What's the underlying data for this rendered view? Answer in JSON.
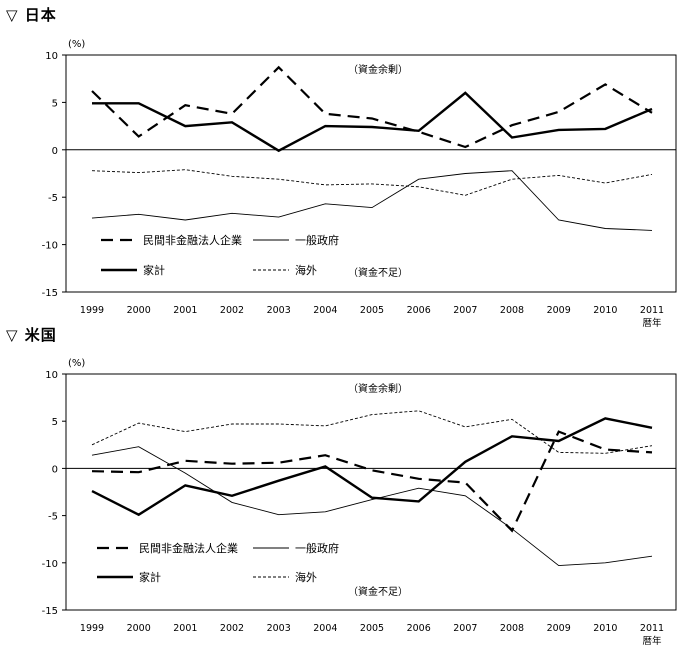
{
  "chart_data": [
    {
      "type": "line",
      "title": "▽ 日本",
      "unit": "(%)",
      "surplus_label": "（資金余剰）",
      "deficit_label": "（資金不足）",
      "x": [
        1999,
        2000,
        2001,
        2002,
        2003,
        2004,
        2005,
        2006,
        2007,
        2008,
        2009,
        2010,
        2011
      ],
      "x_tick_labels": [
        "1999",
        "2000",
        "2001",
        "2002",
        "2003",
        "2004",
        "2005",
        "2006",
        "2007",
        "2008",
        "2009",
        "2010",
        "2011"
      ],
      "x_suffix": "暦年",
      "ylim": [
        -15,
        10
      ],
      "yticks": [
        10,
        5,
        0,
        -5,
        -10,
        -15
      ],
      "series": [
        {
          "name": "民間非金融法人企業",
          "style": "dashed-thick",
          "values": [
            6.2,
            1.4,
            4.7,
            3.8,
            8.7,
            3.8,
            3.3,
            1.9,
            0.3,
            2.6,
            4.0,
            6.9,
            3.9
          ]
        },
        {
          "name": "一般政府",
          "style": "solid-thin",
          "values": [
            -7.2,
            -6.8,
            -7.4,
            -6.7,
            -7.1,
            -5.7,
            -6.1,
            -3.1,
            -2.5,
            -2.2,
            -7.4,
            -8.3,
            -8.5
          ]
        },
        {
          "name": "家計",
          "style": "solid-thick",
          "values": [
            4.9,
            4.9,
            2.5,
            2.9,
            -0.1,
            2.5,
            2.4,
            2.0,
            6.0,
            1.3,
            2.1,
            2.2,
            4.3
          ]
        },
        {
          "name": "海外",
          "style": "dotted-thin",
          "values": [
            -2.2,
            -2.4,
            -2.1,
            -2.8,
            -3.1,
            -3.7,
            -3.6,
            -3.9,
            -4.8,
            -3.1,
            -2.7,
            -3.5,
            -2.6
          ]
        }
      ]
    },
    {
      "type": "line",
      "title": "▽ 米国",
      "unit": "(%)",
      "surplus_label": "（資金余剰）",
      "deficit_label": "（資金不足）",
      "x": [
        1999,
        2000,
        2001,
        2002,
        2003,
        2004,
        2005,
        2006,
        2007,
        2008,
        2009,
        2010,
        2011
      ],
      "x_tick_labels": [
        "1999",
        "2000",
        "2001",
        "2002",
        "2003",
        "2004",
        "2005",
        "2006",
        "2007",
        "2008",
        "2009",
        "2010",
        "2011"
      ],
      "x_suffix": "暦年",
      "ylim": [
        -15,
        10
      ],
      "yticks": [
        10,
        5,
        0,
        -5,
        -10,
        -15
      ],
      "series": [
        {
          "name": "民間非金融法人企業",
          "style": "dashed-thick",
          "values": [
            -0.3,
            -0.4,
            0.8,
            0.5,
            0.6,
            1.4,
            -0.2,
            -1.1,
            -1.5,
            -6.6,
            3.9,
            2.0,
            1.7
          ]
        },
        {
          "name": "一般政府",
          "style": "solid-thin",
          "values": [
            1.4,
            2.3,
            -0.5,
            -3.6,
            -4.9,
            -4.6,
            -3.3,
            -2.1,
            -2.9,
            -6.4,
            -10.3,
            -10.0,
            -9.3
          ]
        },
        {
          "name": "家計",
          "style": "solid-thick",
          "values": [
            -2.4,
            -4.9,
            -1.8,
            -2.9,
            -1.3,
            0.2,
            -3.1,
            -3.5,
            0.7,
            3.4,
            2.9,
            5.3,
            4.3
          ]
        },
        {
          "name": "海外",
          "style": "dotted-thin",
          "values": [
            2.5,
            4.8,
            3.9,
            4.7,
            4.7,
            4.5,
            5.7,
            6.1,
            4.4,
            5.2,
            1.7,
            1.6,
            2.4
          ]
        }
      ]
    }
  ]
}
